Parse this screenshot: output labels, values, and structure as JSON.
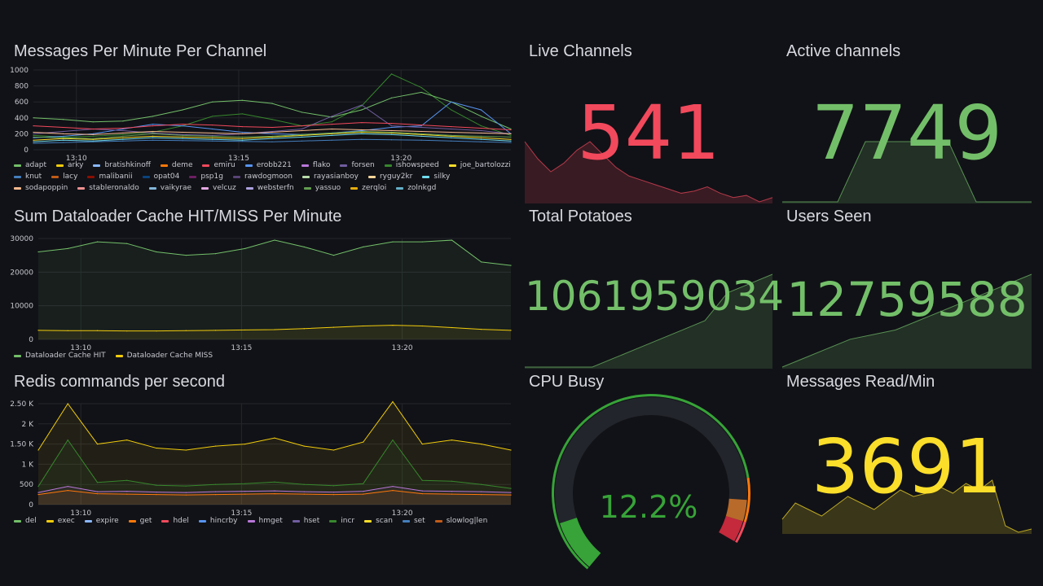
{
  "panels": {
    "messages": {
      "title": "Messages Per Minute Per Channel",
      "y_ticks": [
        "1000",
        "800",
        "600",
        "400",
        "200",
        "0"
      ],
      "x_ticks": [
        "13:10",
        "13:15",
        "13:20"
      ],
      "legend": [
        {
          "name": "adapt",
          "color": "#73bf69"
        },
        {
          "name": "arky",
          "color": "#f2cc0c"
        },
        {
          "name": "bratishkinoff",
          "color": "#8ab8ff"
        },
        {
          "name": "deme",
          "color": "#ff780a"
        },
        {
          "name": "emiru",
          "color": "#f2495c"
        },
        {
          "name": "erobb221",
          "color": "#5794f2"
        },
        {
          "name": "flako",
          "color": "#b877d9"
        },
        {
          "name": "forsen",
          "color": "#705da0"
        },
        {
          "name": "ishowspeed",
          "color": "#37872d"
        },
        {
          "name": "joe_bartolozzi",
          "color": "#fade2a"
        },
        {
          "name": "knut",
          "color": "#447ebc"
        },
        {
          "name": "lacy",
          "color": "#c15c17"
        },
        {
          "name": "malibanii",
          "color": "#890f02"
        },
        {
          "name": "opat04",
          "color": "#0a437c"
        },
        {
          "name": "psp1g",
          "color": "#6d1f62"
        },
        {
          "name": "rawdogmoon",
          "color": "#584477"
        },
        {
          "name": "rayasianboy",
          "color": "#b7dbab"
        },
        {
          "name": "ryguy2kr",
          "color": "#f4d598"
        },
        {
          "name": "silky",
          "color": "#70dbed"
        },
        {
          "name": "sodapoppin",
          "color": "#f9ba8f"
        },
        {
          "name": "stableronaldo",
          "color": "#f29191"
        },
        {
          "name": "vaikyrae",
          "color": "#82b5d8"
        },
        {
          "name": "velcuz",
          "color": "#e5a8e2"
        },
        {
          "name": "websterfn",
          "color": "#aea2e0"
        },
        {
          "name": "yassuo",
          "color": "#629e51"
        },
        {
          "name": "zerqloi",
          "color": "#e5ac0e"
        },
        {
          "name": "zolnkgd",
          "color": "#64b0c8"
        }
      ]
    },
    "cache": {
      "title": "Sum Dataloader Cache HIT/MISS Per Minute",
      "y_ticks": [
        "30000",
        "20000",
        "10000",
        "0"
      ],
      "x_ticks": [
        "13:10",
        "13:15",
        "13:20"
      ],
      "legend": [
        {
          "name": "Dataloader Cache HIT",
          "color": "#73bf69"
        },
        {
          "name": "Dataloader Cache MISS",
          "color": "#f2cc0c"
        }
      ]
    },
    "redis": {
      "title": "Redis commands per second",
      "y_ticks": [
        "2.50 K",
        "2 K",
        "1.50 K",
        "1 K",
        "500",
        "0"
      ],
      "x_ticks": [
        "13:10",
        "13:15",
        "13:20"
      ],
      "legend": [
        {
          "name": "del",
          "color": "#73bf69"
        },
        {
          "name": "exec",
          "color": "#f2cc0c"
        },
        {
          "name": "expire",
          "color": "#8ab8ff"
        },
        {
          "name": "get",
          "color": "#ff780a"
        },
        {
          "name": "hdel",
          "color": "#f2495c"
        },
        {
          "name": "hincrby",
          "color": "#5794f2"
        },
        {
          "name": "hmget",
          "color": "#b877d9"
        },
        {
          "name": "hset",
          "color": "#705da0"
        },
        {
          "name": "incr",
          "color": "#37872d"
        },
        {
          "name": "scan",
          "color": "#fade2a"
        },
        {
          "name": "set",
          "color": "#447ebc"
        },
        {
          "name": "slowlog|len",
          "color": "#c15c17"
        }
      ]
    },
    "live_channels": {
      "title": "Live Channels",
      "value": "541",
      "color": "#f2495c"
    },
    "active_channels": {
      "title": "Active channels",
      "value": "7749",
      "color": "#73bf69"
    },
    "total_potatoes": {
      "title": "Total Potatoes",
      "value": "1061959034",
      "color": "#73bf69"
    },
    "users_seen": {
      "title": "Users Seen",
      "value": "12759588",
      "color": "#73bf69"
    },
    "cpu_busy": {
      "title": "CPU Busy",
      "value": "12.2%",
      "percent": 12.2,
      "color": "#37a338"
    },
    "messages_read": {
      "title": "Messages Read/Min",
      "value": "3691",
      "color": "#fade2a"
    }
  },
  "chart_data": [
    {
      "type": "line",
      "title": "Messages Per Minute Per Channel",
      "ylim": [
        0,
        1000
      ],
      "x": [
        "13:08",
        "13:09",
        "13:10",
        "13:11",
        "13:12",
        "13:13",
        "13:14",
        "13:15",
        "13:16",
        "13:17",
        "13:18",
        "13:19",
        "13:20",
        "13:21",
        "13:22",
        "13:23",
        "13:24"
      ],
      "series": [
        {
          "name": "ishowspeed",
          "values": [
            180,
            160,
            170,
            190,
            220,
            300,
            420,
            450,
            380,
            300,
            350,
            550,
            950,
            780,
            500,
            300,
            180
          ]
        },
        {
          "name": "adapt",
          "values": [
            400,
            380,
            350,
            360,
            420,
            500,
            600,
            620,
            580,
            470,
            410,
            500,
            650,
            720,
            600,
            420,
            260
          ]
        },
        {
          "name": "erobb221",
          "values": [
            150,
            170,
            200,
            260,
            320,
            300,
            260,
            220,
            200,
            190,
            210,
            240,
            280,
            300,
            600,
            500,
            200
          ]
        },
        {
          "name": "forsen",
          "values": [
            200,
            230,
            260,
            240,
            210,
            190,
            180,
            200,
            230,
            260,
            420,
            560,
            300,
            280,
            260,
            240,
            200
          ]
        },
        {
          "name": "joe_bartolozzi",
          "values": [
            120,
            140,
            130,
            150,
            170,
            160,
            150,
            140,
            160,
            180,
            200,
            220,
            210,
            190,
            170,
            150,
            130
          ]
        },
        {
          "name": "emiru",
          "values": [
            300,
            280,
            260,
            270,
            300,
            320,
            310,
            290,
            280,
            300,
            320,
            340,
            330,
            310,
            290,
            270,
            250
          ]
        },
        {
          "name": "silky",
          "values": [
            100,
            120,
            110,
            130,
            150,
            140,
            130,
            120,
            140,
            160,
            180,
            200,
            190,
            170,
            150,
            130,
            110
          ]
        },
        {
          "name": "sodapoppin",
          "values": [
            220,
            200,
            190,
            210,
            230,
            220,
            210,
            200,
            220,
            240,
            260,
            250,
            240,
            230,
            220,
            210,
            200
          ]
        },
        {
          "name": "knut",
          "values": [
            80,
            90,
            100,
            110,
            120,
            115,
            110,
            105,
            100,
            110,
            120,
            130,
            125,
            120,
            110,
            100,
            90
          ]
        },
        {
          "name": "yassuo",
          "values": [
            160,
            150,
            140,
            170,
            200,
            180,
            170,
            160,
            170,
            190,
            210,
            230,
            220,
            200,
            180,
            170,
            160
          ]
        }
      ]
    },
    {
      "type": "area",
      "title": "Sum Dataloader Cache HIT/MISS Per Minute",
      "ylim": [
        0,
        30000
      ],
      "x": [
        "13:08",
        "13:09",
        "13:10",
        "13:11",
        "13:12",
        "13:13",
        "13:14",
        "13:15",
        "13:16",
        "13:17",
        "13:18",
        "13:19",
        "13:20",
        "13:21",
        "13:22",
        "13:23",
        "13:24"
      ],
      "series": [
        {
          "name": "Dataloader Cache HIT",
          "values": [
            26000,
            27000,
            29000,
            28500,
            26000,
            25000,
            25500,
            27000,
            29500,
            27500,
            25000,
            27500,
            29000,
            29000,
            29500,
            23000,
            22000
          ]
        },
        {
          "name": "Dataloader Cache MISS",
          "values": [
            2700,
            2600,
            2600,
            2500,
            2500,
            2600,
            2700,
            2800,
            2900,
            3200,
            3600,
            4000,
            4200,
            4000,
            3500,
            3000,
            2700
          ]
        }
      ]
    },
    {
      "type": "area",
      "title": "Redis commands per second",
      "ylim": [
        0,
        2500
      ],
      "x": [
        "13:08",
        "13:09",
        "13:10",
        "13:11",
        "13:12",
        "13:13",
        "13:14",
        "13:15",
        "13:16",
        "13:17",
        "13:18",
        "13:19",
        "13:20",
        "13:21",
        "13:22",
        "13:23",
        "13:24"
      ],
      "series": [
        {
          "name": "exec",
          "values": [
            1350,
            2500,
            1500,
            1600,
            1400,
            1350,
            1450,
            1500,
            1650,
            1450,
            1350,
            1550,
            2550,
            1500,
            1600,
            1500,
            1350
          ]
        },
        {
          "name": "incr",
          "values": [
            450,
            1600,
            550,
            600,
            480,
            460,
            500,
            520,
            560,
            500,
            470,
            520,
            1600,
            600,
            580,
            500,
            400
          ]
        },
        {
          "name": "hmget",
          "values": [
            300,
            450,
            320,
            330,
            310,
            300,
            320,
            330,
            340,
            320,
            310,
            330,
            450,
            340,
            330,
            320,
            300
          ]
        },
        {
          "name": "get",
          "values": [
            250,
            350,
            270,
            260,
            250,
            240,
            250,
            260,
            270,
            260,
            250,
            260,
            350,
            270,
            260,
            250,
            240
          ]
        }
      ]
    },
    {
      "type": "area",
      "title": "Live Channels",
      "x": [
        1,
        2,
        3,
        4,
        5,
        6,
        7,
        8,
        9,
        10,
        11,
        12,
        13,
        14,
        15,
        16,
        17,
        18,
        19,
        20
      ],
      "values": [
        560,
        520,
        490,
        510,
        540,
        560,
        530,
        500,
        480,
        470,
        460,
        450,
        440,
        445,
        455,
        440,
        430,
        435,
        420,
        430
      ]
    },
    {
      "type": "area",
      "title": "Active channels",
      "x": [
        1,
        2,
        3,
        4,
        5,
        6,
        7,
        8,
        9,
        10
      ],
      "values": [
        0,
        0,
        0,
        1,
        1,
        1,
        1,
        0,
        0,
        0
      ]
    },
    {
      "type": "area",
      "title": "Total Potatoes",
      "x": [
        1,
        2,
        3,
        4,
        5,
        6,
        7,
        8,
        9,
        10,
        11,
        12
      ],
      "values": [
        0,
        0,
        0,
        0,
        1,
        2,
        3,
        4,
        5,
        8,
        9,
        10
      ]
    },
    {
      "type": "area",
      "title": "Users Seen",
      "x": [
        1,
        2,
        3,
        4,
        5,
        6,
        7,
        8,
        9,
        10,
        11,
        12
      ],
      "values": [
        0,
        2,
        4,
        6,
        7,
        8,
        10,
        12,
        14,
        16,
        18,
        20
      ]
    },
    {
      "type": "area",
      "title": "Messages Read/Min",
      "x": [
        1,
        2,
        3,
        4,
        5,
        6,
        7,
        8,
        9,
        10,
        11,
        12,
        13,
        14,
        15,
        16,
        17,
        18,
        19,
        20
      ],
      "values": [
        2400,
        2900,
        2700,
        2500,
        2800,
        3100,
        2900,
        2700,
        3000,
        3300,
        3100,
        3200,
        3400,
        3200,
        3500,
        3300,
        3600,
        2200,
        2000,
        2100
      ]
    }
  ]
}
